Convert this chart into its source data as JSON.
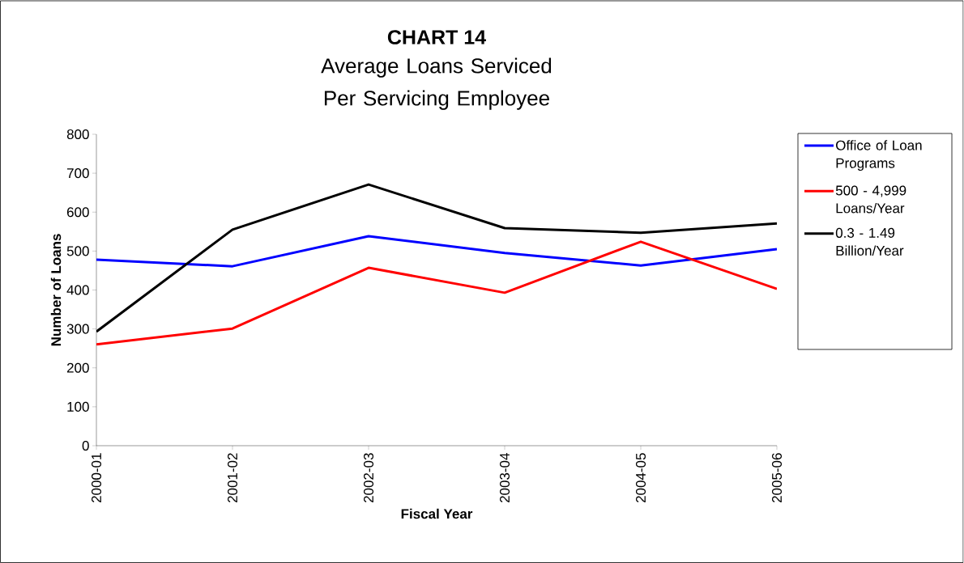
{
  "chart_data": {
    "type": "line",
    "title": "CHART  14",
    "subtitle": "Average Loans Serviced Per Servicing Employee",
    "xlabel": "Fiscal Year",
    "ylabel": "Number of Loans",
    "categories": [
      "2000-01",
      "2001-02",
      "2002-03",
      "2003-04",
      "2004-05",
      "2005-06"
    ],
    "series": [
      {
        "name": "Office of Loan Programs",
        "color": "#0000ff",
        "values": [
          478,
          461,
          538,
          495,
          463,
          505
        ]
      },
      {
        "name": "500 - 4,999 Loans/Year",
        "color": "#ff0000",
        "values": [
          260,
          301,
          457,
          393,
          524,
          403
        ]
      },
      {
        "name": "0.3 - 1.49 Billion/Year",
        "color": "#000000",
        "values": [
          293,
          555,
          671,
          559,
          547,
          571
        ]
      }
    ],
    "ylim": [
      0,
      800
    ],
    "yticks": [
      0,
      100,
      200,
      300,
      400,
      500,
      600,
      700,
      800
    ],
    "grid": false,
    "legend": "right",
    "marker": "none",
    "line_style": "solid"
  }
}
